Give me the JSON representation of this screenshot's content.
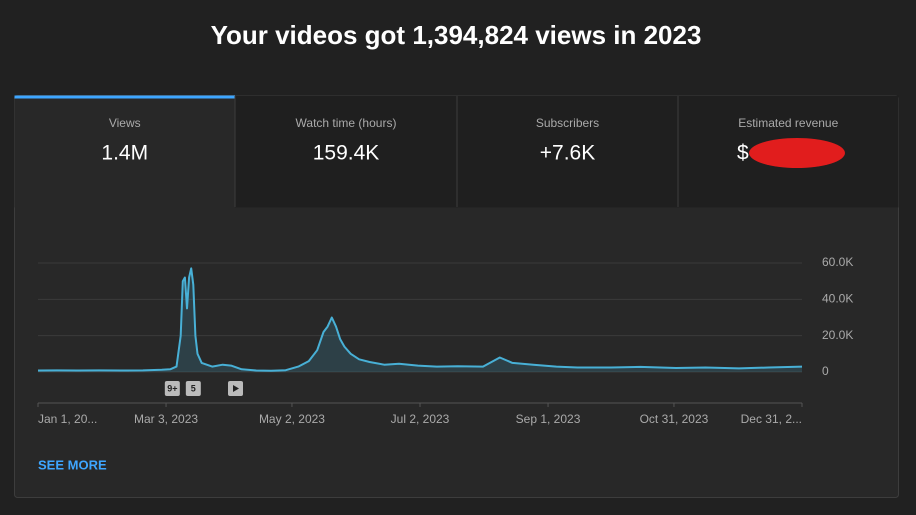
{
  "header": {
    "title": "Your videos got 1,394,824 views in 2023"
  },
  "tabs": [
    {
      "label": "Views",
      "value": "1.4M"
    },
    {
      "label": "Watch time (hours)",
      "value": "159.4K"
    },
    {
      "label": "Subscribers",
      "value": "+7.6K"
    },
    {
      "label": "Estimated revenue",
      "value": "$"
    }
  ],
  "chart_data": {
    "type": "line",
    "x": [
      "2023-01-01",
      "2023-01-10",
      "2023-01-20",
      "2023-01-30",
      "2023-02-10",
      "2023-02-20",
      "2023-03-01",
      "2023-03-05",
      "2023-03-08",
      "2023-03-10",
      "2023-03-11",
      "2023-03-12",
      "2023-03-13",
      "2023-03-14",
      "2023-03-15",
      "2023-03-16",
      "2023-03-17",
      "2023-03-18",
      "2023-03-20",
      "2023-03-25",
      "2023-03-30",
      "2023-04-03",
      "2023-04-08",
      "2023-04-15",
      "2023-04-22",
      "2023-04-29",
      "2023-05-05",
      "2023-05-10",
      "2023-05-14",
      "2023-05-17",
      "2023-05-19",
      "2023-05-21",
      "2023-05-23",
      "2023-05-25",
      "2023-05-27",
      "2023-05-30",
      "2023-06-03",
      "2023-06-08",
      "2023-06-15",
      "2023-06-22",
      "2023-07-01",
      "2023-07-10",
      "2023-07-20",
      "2023-08-01",
      "2023-08-09",
      "2023-08-15",
      "2023-08-25",
      "2023-09-05",
      "2023-09-15",
      "2023-10-01",
      "2023-10-15",
      "2023-11-01",
      "2023-11-15",
      "2023-12-01",
      "2023-12-15",
      "2023-12-31"
    ],
    "series": [
      {
        "name": "Views",
        "color": "#48b0d6",
        "values": [
          800,
          900,
          800,
          900,
          800,
          900,
          1200,
          1500,
          3000,
          20000,
          50000,
          52000,
          35000,
          52000,
          57000,
          48000,
          20000,
          10000,
          5000,
          3000,
          4000,
          3500,
          1500,
          800,
          700,
          1000,
          3000,
          6000,
          12000,
          22000,
          25000,
          30000,
          25000,
          18000,
          14000,
          10000,
          7000,
          5500,
          4000,
          4500,
          3500,
          3000,
          3200,
          3000,
          8000,
          5000,
          4000,
          3000,
          2500,
          2500,
          2800,
          2200,
          2500,
          2000,
          2500,
          3000
        ]
      }
    ],
    "xlim": [
      "2023-01-01",
      "2023-12-31"
    ],
    "xticks": [
      {
        "value": "2023-01-01",
        "label": "Jan 1, 20..."
      },
      {
        "value": "2023-03-03",
        "label": "Mar 3, 2023"
      },
      {
        "value": "2023-05-02",
        "label": "May 2, 2023"
      },
      {
        "value": "2023-07-02",
        "label": "Jul 2, 2023"
      },
      {
        "value": "2023-09-01",
        "label": "Sep 1, 2023"
      },
      {
        "value": "2023-10-31",
        "label": "Oct 31, 2023"
      },
      {
        "value": "2023-12-31",
        "label": "Dec 31, 2..."
      }
    ],
    "ylim": [
      0,
      60000
    ],
    "yticks": [
      0,
      {
        "value": 20000,
        "label": "20.0K"
      },
      {
        "value": 40000,
        "label": "40.0K"
      },
      {
        "value": 60000,
        "label": "60.0K"
      }
    ],
    "grid": true,
    "annotations": [
      {
        "x": "2023-03-06",
        "label": "9+"
      },
      {
        "x": "2023-03-16",
        "label": "5"
      }
    ]
  },
  "footer": {
    "link": "SEE MORE"
  }
}
